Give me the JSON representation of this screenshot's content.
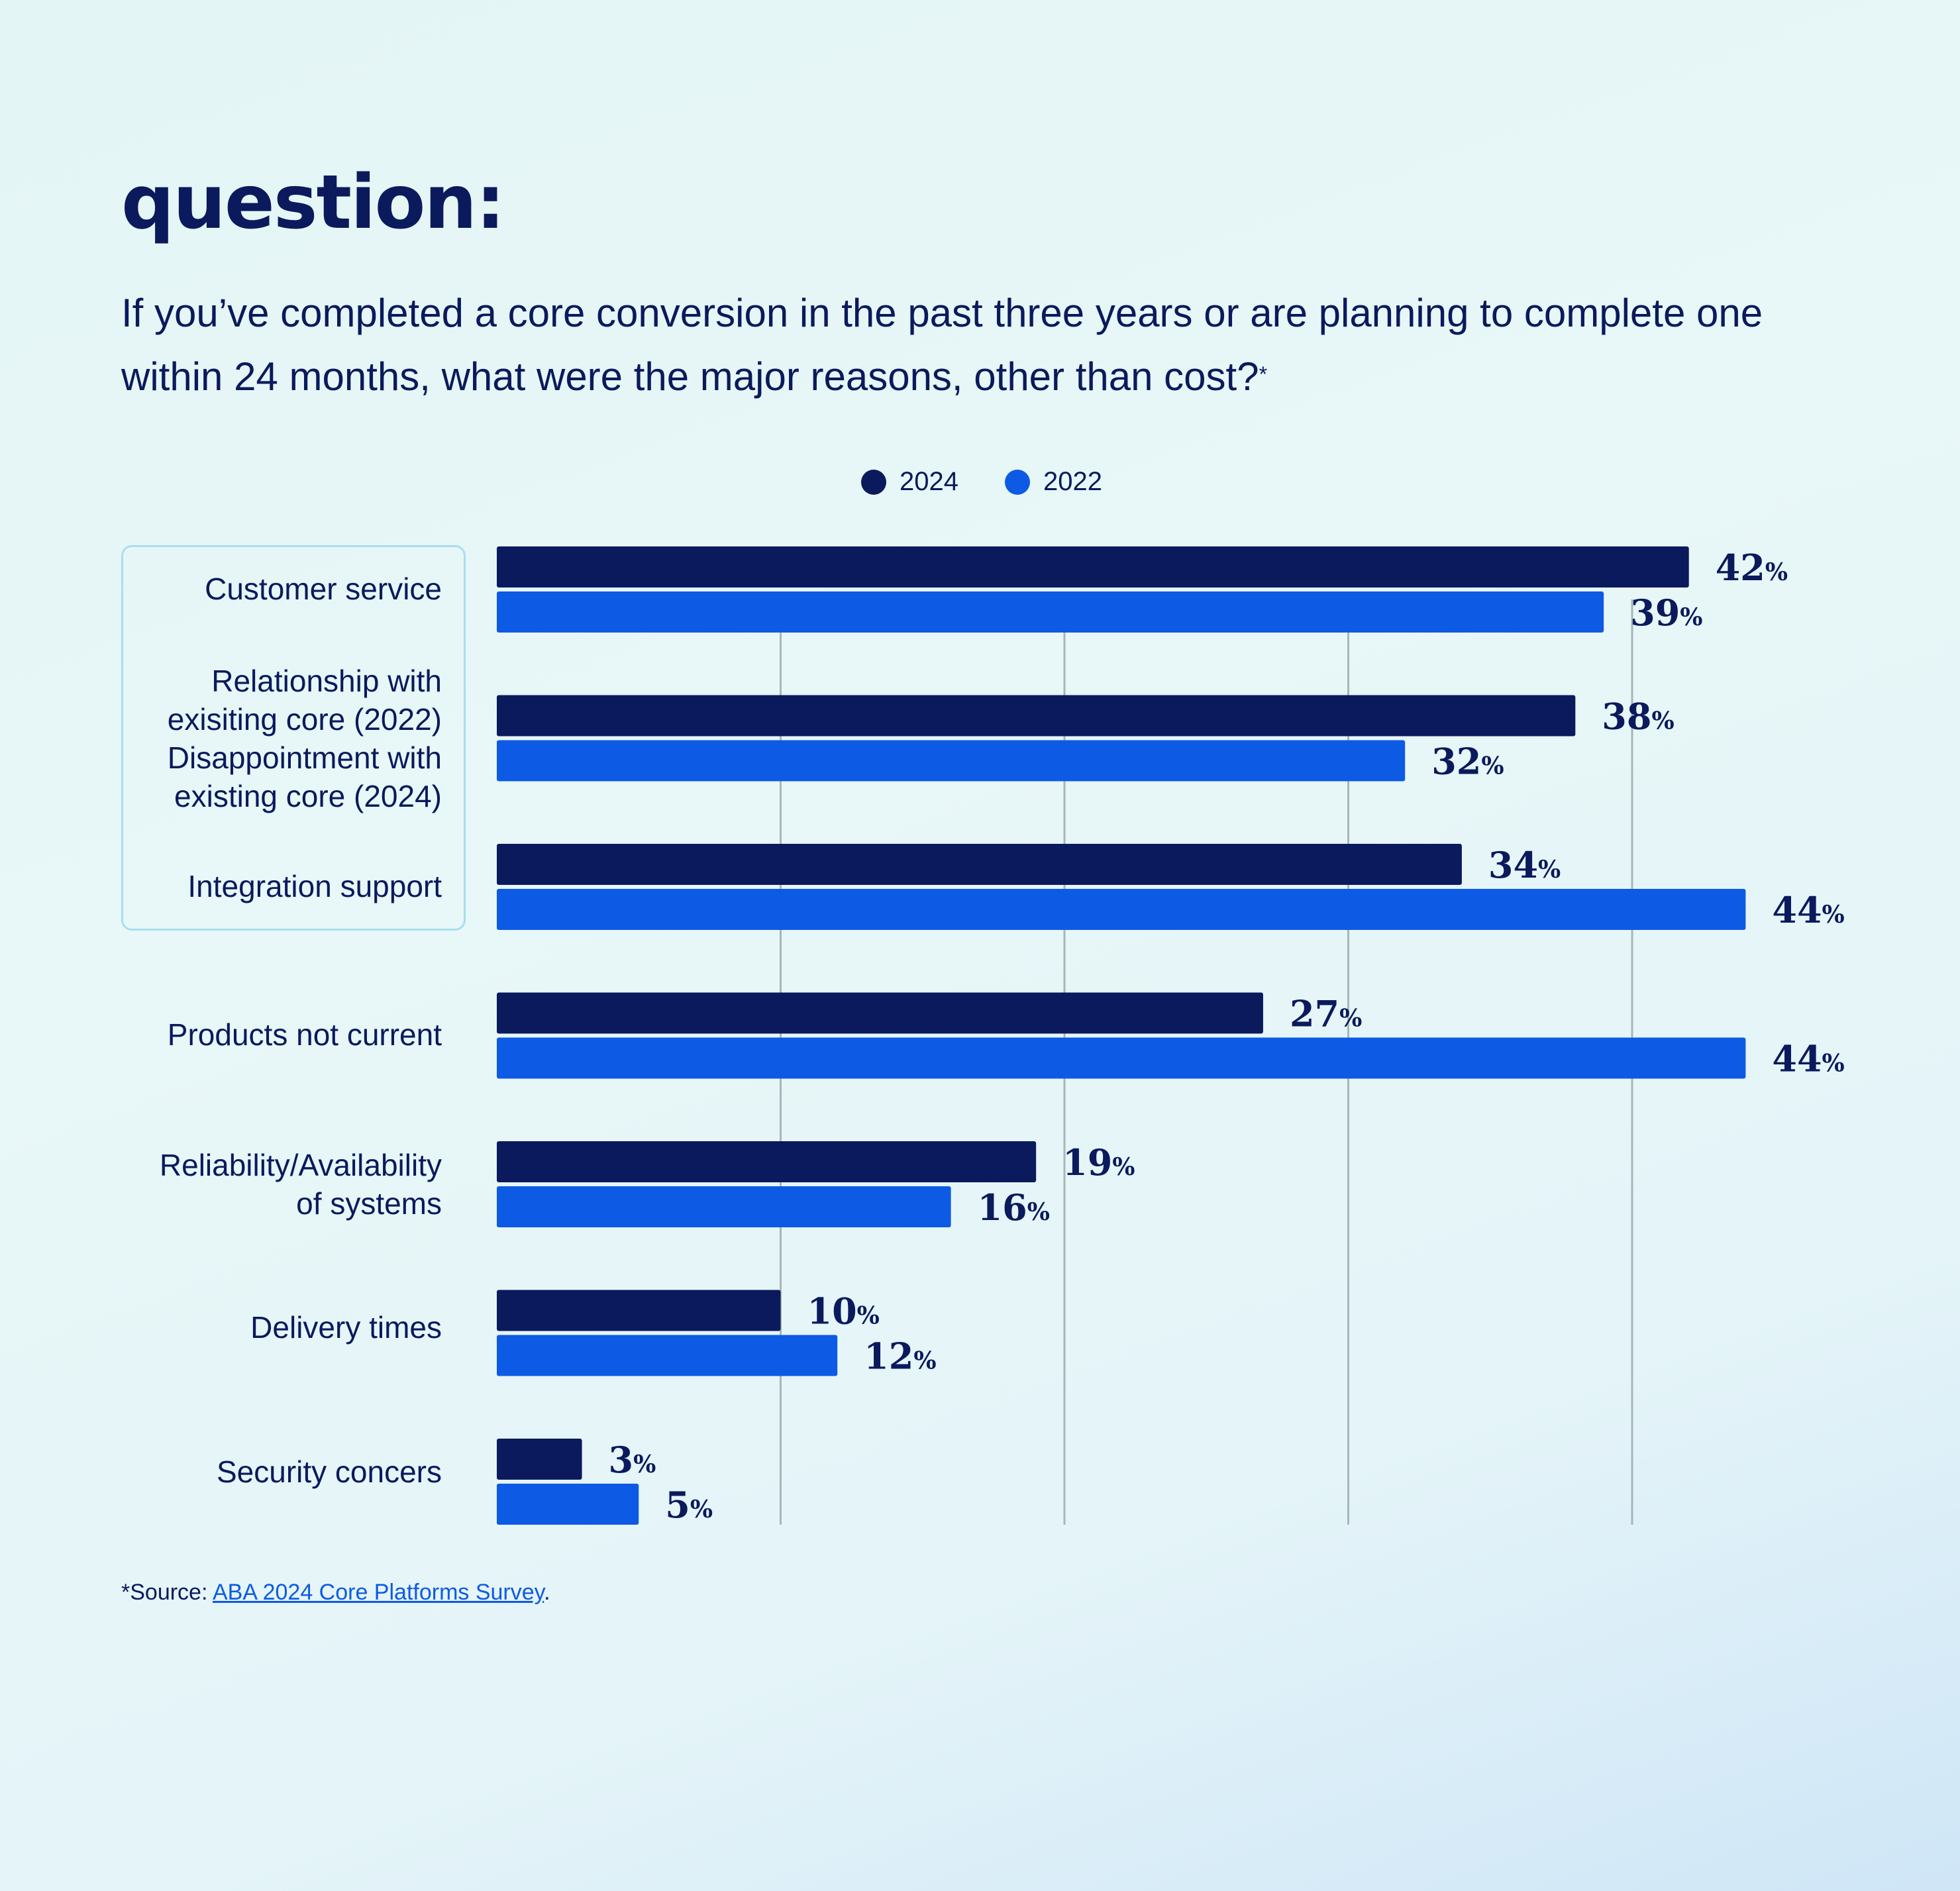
{
  "heading": "question:",
  "subtitle": "If you’ve completed a core conversion in the past three years or are planning to complete one within 24 months, what were the major reasons, other than cost?",
  "subtitle_marker": "*",
  "legend": [
    {
      "label": "2024",
      "color": "#0a1a5c"
    },
    {
      "label": "2022",
      "color": "#0d5ae5"
    }
  ],
  "chart_data": {
    "type": "bar",
    "orientation": "horizontal",
    "categories": [
      "Customer service",
      "Relationship with\nexisiting core (2022)\nDisappointment with\nexisting core (2024)",
      "Integration support",
      "Products not current",
      "Reliability/Availability\nof systems",
      "Delivery times",
      "Security concers"
    ],
    "series": [
      {
        "name": "2024",
        "color": "#0a1a5c",
        "values": [
          42,
          38,
          34,
          27,
          19,
          10,
          3
        ]
      },
      {
        "name": "2022",
        "color": "#0d5ae5",
        "values": [
          39,
          32,
          44,
          44,
          16,
          12,
          5
        ]
      }
    ],
    "value_suffix": "%",
    "xlim": [
      0,
      44
    ],
    "gridlines": [
      10,
      20,
      30,
      40
    ],
    "grid": true,
    "legend_position": "top-center"
  },
  "source": {
    "prefix": "*Source: ",
    "link_text": "ABA 2024 Core Platforms Survey",
    "suffix": "."
  }
}
